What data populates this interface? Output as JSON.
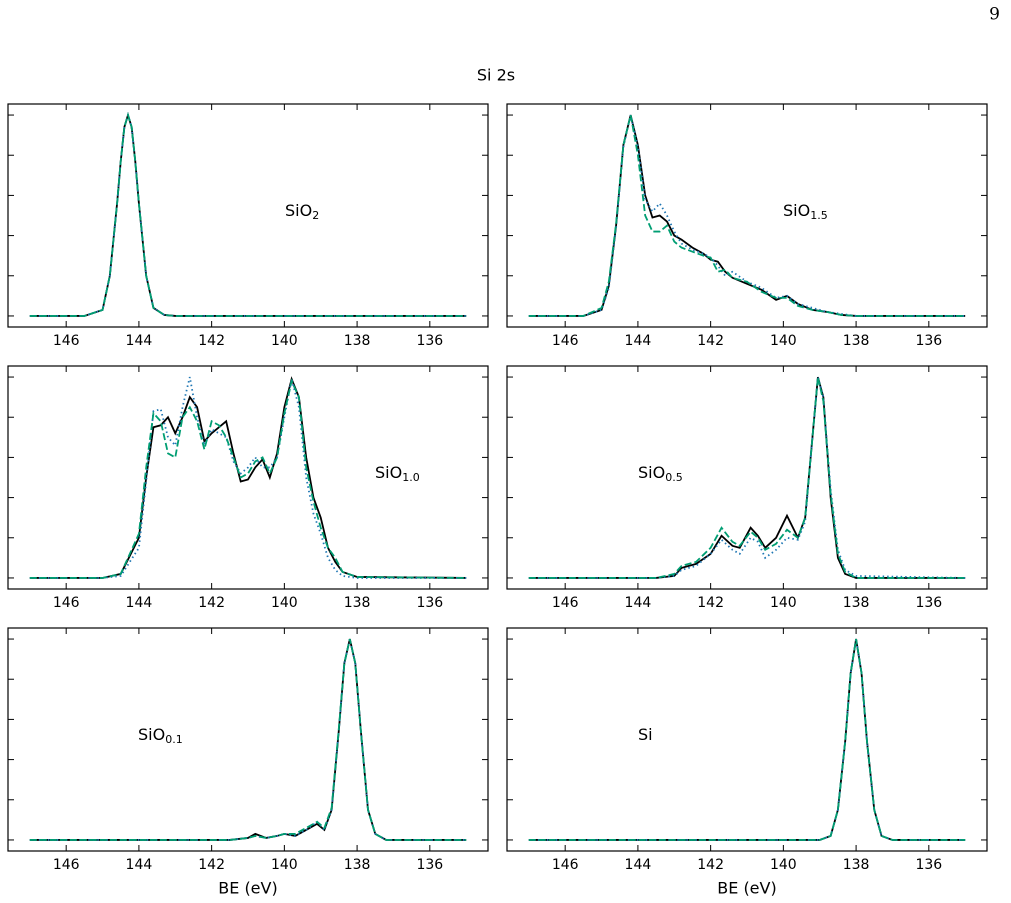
{
  "page_number": "9",
  "title": "Si 2s",
  "chart_data": [
    {
      "type": "line",
      "label": "SiO",
      "label_sub": "2",
      "xlim": [
        147.6,
        134.4
      ],
      "xticks": [
        146,
        144,
        142,
        140,
        138,
        136
      ],
      "ylim": [
        -0.055,
        1.055
      ],
      "yticks": [
        0,
        0.2,
        0.4,
        0.6,
        0.8,
        1.0
      ],
      "ytick_labels": false,
      "x": [
        147,
        145.5,
        145,
        144.8,
        144.6,
        144.5,
        144.4,
        144.3,
        144.2,
        144.1,
        144,
        143.8,
        143.6,
        143.3,
        143,
        135
      ],
      "series": [
        {
          "color": "#000000",
          "dash": "solid",
          "values": [
            0,
            0,
            0.03,
            0.2,
            0.56,
            0.77,
            0.94,
            1,
            0.94,
            0.77,
            0.56,
            0.2,
            0.04,
            0.005,
            0,
            0
          ]
        },
        {
          "color": "#1f77b4",
          "dash": "dotted",
          "values": [
            0,
            0,
            0.03,
            0.2,
            0.56,
            0.77,
            0.94,
            1,
            0.94,
            0.77,
            0.56,
            0.2,
            0.04,
            0.005,
            0,
            0
          ]
        },
        {
          "color": "#009e73",
          "dash": "dashed",
          "values": [
            0,
            0,
            0.03,
            0.2,
            0.56,
            0.77,
            0.94,
            1,
            0.94,
            0.77,
            0.56,
            0.2,
            0.04,
            0.005,
            0,
            0
          ]
        }
      ]
    },
    {
      "type": "line",
      "label": "SiO",
      "label_sub": "1.5",
      "xlim": [
        147.6,
        134.4
      ],
      "xticks": [
        146,
        144,
        142,
        140,
        138,
        136
      ],
      "ylim": [
        -0.055,
        1.055
      ],
      "yticks": [
        0,
        0.2,
        0.4,
        0.6,
        0.8,
        1.0
      ],
      "ytick_labels": false,
      "x": [
        147,
        145.5,
        145,
        144.8,
        144.6,
        144.4,
        144.2,
        144,
        143.8,
        143.6,
        143.4,
        143.2,
        143,
        142.8,
        142.5,
        142.2,
        142,
        141.8,
        141.6,
        141.4,
        141,
        140.6,
        140.2,
        139.9,
        139.6,
        139.2,
        138.8,
        138.4,
        138,
        135
      ],
      "series": [
        {
          "color": "#000000",
          "dash": "solid",
          "values": [
            0,
            0,
            0.03,
            0.15,
            0.45,
            0.85,
            1,
            0.85,
            0.6,
            0.49,
            0.5,
            0.47,
            0.4,
            0.38,
            0.34,
            0.31,
            0.28,
            0.27,
            0.22,
            0.19,
            0.16,
            0.13,
            0.08,
            0.1,
            0.06,
            0.03,
            0.02,
            0.005,
            0,
            0
          ]
        },
        {
          "color": "#1f77b4",
          "dash": "dotted",
          "values": [
            0,
            0,
            0.03,
            0.14,
            0.44,
            0.84,
            1,
            0.84,
            0.58,
            0.52,
            0.56,
            0.5,
            0.42,
            0.36,
            0.33,
            0.31,
            0.29,
            0.25,
            0.2,
            0.22,
            0.17,
            0.14,
            0.09,
            0.1,
            0.06,
            0.04,
            0.02,
            0.01,
            0,
            0
          ]
        },
        {
          "color": "#009e73",
          "dash": "dashed",
          "values": [
            0,
            0,
            0.04,
            0.17,
            0.46,
            0.85,
            1,
            0.8,
            0.5,
            0.42,
            0.42,
            0.45,
            0.37,
            0.34,
            0.32,
            0.3,
            0.29,
            0.22,
            0.23,
            0.19,
            0.17,
            0.12,
            0.09,
            0.09,
            0.05,
            0.03,
            0.02,
            0.005,
            0,
            0
          ]
        }
      ]
    },
    {
      "type": "line",
      "label": "SiO",
      "label_sub": "1.0",
      "xlim": [
        147.6,
        134.4
      ],
      "xticks": [
        146,
        144,
        142,
        140,
        138,
        136
      ],
      "ylim": [
        -0.055,
        1.055
      ],
      "yticks": [
        0,
        0.2,
        0.4,
        0.6,
        0.8,
        1.0
      ],
      "ytick_labels": false,
      "x": [
        147,
        145,
        144.5,
        144,
        143.8,
        143.6,
        143.4,
        143.2,
        143.0,
        142.8,
        142.6,
        142.4,
        142.2,
        142.0,
        141.8,
        141.6,
        141.4,
        141.2,
        141.0,
        140.8,
        140.6,
        140.4,
        140.2,
        140.0,
        139.8,
        139.6,
        139.4,
        139.2,
        139.0,
        138.8,
        138.6,
        138.4,
        138.0,
        135
      ],
      "series": [
        {
          "color": "#000000",
          "dash": "solid",
          "values": [
            0,
            0,
            0.02,
            0.2,
            0.5,
            0.75,
            0.76,
            0.8,
            0.72,
            0.8,
            0.9,
            0.85,
            0.68,
            0.72,
            0.75,
            0.78,
            0.62,
            0.48,
            0.49,
            0.55,
            0.59,
            0.5,
            0.62,
            0.85,
            0.99,
            0.9,
            0.6,
            0.4,
            0.3,
            0.15,
            0.08,
            0.03,
            0.005,
            0
          ]
        },
        {
          "color": "#1f77b4",
          "dash": "dotted",
          "values": [
            0,
            0,
            0.01,
            0.15,
            0.48,
            0.83,
            0.84,
            0.7,
            0.66,
            0.85,
            1.0,
            0.8,
            0.66,
            0.74,
            0.72,
            0.7,
            0.58,
            0.52,
            0.55,
            0.6,
            0.55,
            0.55,
            0.6,
            0.8,
            0.99,
            0.85,
            0.5,
            0.32,
            0.22,
            0.1,
            0.04,
            0.01,
            0,
            0
          ]
        },
        {
          "color": "#009e73",
          "dash": "dashed",
          "values": [
            0,
            0,
            0.02,
            0.22,
            0.55,
            0.82,
            0.78,
            0.62,
            0.6,
            0.8,
            0.85,
            0.78,
            0.64,
            0.78,
            0.76,
            0.7,
            0.6,
            0.5,
            0.52,
            0.58,
            0.6,
            0.52,
            0.6,
            0.82,
            0.98,
            0.9,
            0.55,
            0.38,
            0.25,
            0.15,
            0.1,
            0.03,
            0.005,
            0
          ]
        }
      ]
    },
    {
      "type": "line",
      "label": "SiO",
      "label_sub": "0.5",
      "xlim": [
        147.6,
        134.4
      ],
      "xticks": [
        146,
        144,
        142,
        140,
        138,
        136
      ],
      "ylim": [
        -0.055,
        1.055
      ],
      "yticks": [
        0,
        0.2,
        0.4,
        0.6,
        0.8,
        1.0
      ],
      "ytick_labels": false,
      "x": [
        147,
        143.5,
        143,
        142.8,
        142.4,
        142,
        141.7,
        141.4,
        141.2,
        140.9,
        140.7,
        140.5,
        140.2,
        139.9,
        139.6,
        139.4,
        139.2,
        139.05,
        138.9,
        138.7,
        138.5,
        138.3,
        138,
        135
      ],
      "series": [
        {
          "color": "#000000",
          "dash": "solid",
          "values": [
            0,
            0,
            0.01,
            0.05,
            0.07,
            0.12,
            0.21,
            0.16,
            0.15,
            0.25,
            0.21,
            0.15,
            0.2,
            0.31,
            0.2,
            0.3,
            0.7,
            1,
            0.9,
            0.4,
            0.1,
            0.02,
            0,
            0
          ]
        },
        {
          "color": "#1f77b4",
          "dash": "dotted",
          "values": [
            0,
            0,
            0.01,
            0.04,
            0.06,
            0.12,
            0.19,
            0.14,
            0.12,
            0.2,
            0.18,
            0.1,
            0.14,
            0.2,
            0.19,
            0.28,
            0.7,
            1,
            0.9,
            0.44,
            0.14,
            0.04,
            0.01,
            0
          ]
        },
        {
          "color": "#009e73",
          "dash": "dashed",
          "values": [
            0,
            0,
            0.02,
            0.06,
            0.08,
            0.15,
            0.25,
            0.18,
            0.16,
            0.23,
            0.2,
            0.14,
            0.17,
            0.24,
            0.2,
            0.3,
            0.7,
            1,
            0.88,
            0.42,
            0.12,
            0.03,
            0,
            0
          ]
        }
      ]
    },
    {
      "type": "line",
      "label": "SiO",
      "label_sub": "0.1",
      "xlabel": "BE (eV)",
      "xlim": [
        147.6,
        134.4
      ],
      "xticks": [
        146,
        144,
        142,
        140,
        138,
        136
      ],
      "ylim": [
        -0.055,
        1.055
      ],
      "yticks": [
        0,
        0.2,
        0.4,
        0.6,
        0.8,
        1.0
      ],
      "ytick_labels": false,
      "x": [
        147,
        141.5,
        141,
        140.8,
        140.5,
        140.2,
        140,
        139.7,
        139.4,
        139.1,
        138.9,
        138.7,
        138.5,
        138.35,
        138.2,
        138.05,
        137.9,
        137.7,
        137.5,
        137.2,
        135
      ],
      "series": [
        {
          "color": "#000000",
          "dash": "solid",
          "values": [
            0,
            0,
            0.01,
            0.03,
            0.01,
            0.02,
            0.03,
            0.02,
            0.05,
            0.08,
            0.05,
            0.15,
            0.55,
            0.88,
            1,
            0.88,
            0.55,
            0.15,
            0.03,
            0,
            0
          ]
        },
        {
          "color": "#1f77b4",
          "dash": "dotted",
          "values": [
            0,
            0,
            0.01,
            0.02,
            0.01,
            0.02,
            0.03,
            0.02,
            0.05,
            0.09,
            0.05,
            0.15,
            0.55,
            0.88,
            1,
            0.88,
            0.55,
            0.15,
            0.03,
            0,
            0
          ]
        },
        {
          "color": "#009e73",
          "dash": "dashed",
          "values": [
            0,
            0,
            0.01,
            0.02,
            0.01,
            0.02,
            0.03,
            0.03,
            0.06,
            0.09,
            0.06,
            0.16,
            0.56,
            0.88,
            1,
            0.88,
            0.55,
            0.15,
            0.03,
            0,
            0
          ]
        }
      ]
    },
    {
      "type": "line",
      "label": "Si",
      "xlabel": "BE (eV)",
      "xlim": [
        147.6,
        134.4
      ],
      "xticks": [
        146,
        144,
        142,
        140,
        138,
        136
      ],
      "ylim": [
        -0.055,
        1.055
      ],
      "yticks": [
        0,
        0.2,
        0.4,
        0.6,
        0.8,
        1.0
      ],
      "ytick_labels": false,
      "x": [
        147,
        139,
        138.7,
        138.5,
        138.3,
        138.15,
        138,
        137.85,
        137.7,
        137.5,
        137.3,
        137,
        135
      ],
      "series": [
        {
          "color": "#000000",
          "dash": "solid",
          "values": [
            0,
            0,
            0.02,
            0.15,
            0.49,
            0.83,
            1,
            0.83,
            0.49,
            0.15,
            0.02,
            0,
            0
          ]
        },
        {
          "color": "#1f77b4",
          "dash": "dotted",
          "values": [
            0,
            0,
            0.02,
            0.15,
            0.49,
            0.83,
            1,
            0.83,
            0.49,
            0.15,
            0.02,
            0,
            0
          ]
        },
        {
          "color": "#009e73",
          "dash": "dashed",
          "values": [
            0,
            0,
            0.02,
            0.15,
            0.49,
            0.83,
            1,
            0.83,
            0.49,
            0.15,
            0.02,
            0,
            0
          ]
        }
      ]
    }
  ]
}
